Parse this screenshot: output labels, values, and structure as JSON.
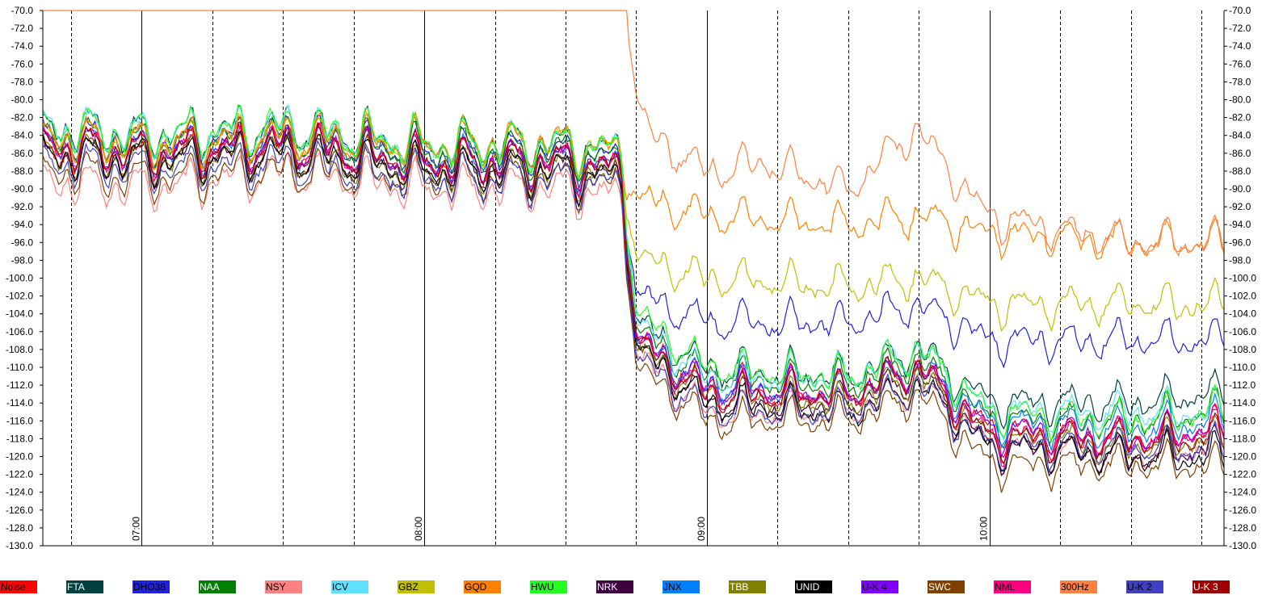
{
  "chart_data": {
    "type": "line",
    "title": "",
    "xlabel": "",
    "ylabel": "",
    "ylim": [
      -130,
      -70
    ],
    "y_ticks": [
      "-70.0",
      "-72.0",
      "-74.0",
      "-76.0",
      "-78.0",
      "-80.0",
      "-82.0",
      "-84.0",
      "-86.0",
      "-88.0",
      "-90.0",
      "-92.0",
      "-94.0",
      "-96.0",
      "-98.0",
      "-100.0",
      "-102.0",
      "-104.0",
      "-106.0",
      "-108.0",
      "-110.0",
      "-112.0",
      "-114.0",
      "-116.0",
      "-118.0",
      "-120.0",
      "-122.0",
      "-124.0",
      "-126.0",
      "-128.0",
      "-130.0"
    ],
    "time_labels": [
      "07:00",
      "08:00",
      "09:00",
      "10:00"
    ],
    "x_range_hours": [
      6.65,
      10.83
    ],
    "grid": "vertical lines every 15 min (dashed) and every hour (solid)",
    "legend_position": "bottom",
    "series": [
      {
        "name": "Noise",
        "color": "#ff0000",
        "text_color": "#000000",
        "x": [
          6.65,
          7.0,
          7.5,
          8.0,
          8.5,
          8.7,
          8.75,
          9.0,
          9.5,
          9.75,
          10.0,
          10.5,
          10.78
        ],
        "values": [
          -86,
          -87,
          -85,
          -87,
          -87,
          -88,
          -107,
          -112,
          -113,
          -110,
          -117,
          -118,
          -117
        ]
      },
      {
        "name": "FTA",
        "color": "#004040",
        "text_color": "#ffffff",
        "x": [
          6.65,
          7.0,
          7.5,
          8.0,
          8.5,
          8.7,
          8.75,
          9.0,
          9.5,
          9.75,
          10.0,
          10.5,
          10.78
        ],
        "values": [
          -83,
          -84,
          -83,
          -85,
          -85,
          -86,
          -105,
          -110,
          -111,
          -108,
          -114,
          -114,
          -113
        ]
      },
      {
        "name": "DHO38",
        "color": "#2020e0",
        "text_color": "#000000",
        "x": [
          6.65,
          7.0,
          7.5,
          8.0,
          8.5,
          8.7,
          8.75,
          9.0,
          9.5,
          9.75,
          10.0,
          10.5,
          10.78
        ],
        "values": [
          -84,
          -85,
          -84,
          -86,
          -86,
          -87,
          -102,
          -105,
          -105,
          -103,
          -107,
          -107,
          -107
        ]
      },
      {
        "name": "NAA",
        "color": "#008000",
        "text_color": "#ffffff",
        "x": [
          6.65,
          7.0,
          7.5,
          8.0,
          8.5,
          8.7,
          8.75,
          9.0,
          9.5,
          9.75,
          10.0,
          10.5,
          10.78
        ],
        "values": [
          -84,
          -85,
          -84,
          -86,
          -86,
          -87,
          -106,
          -111,
          -112,
          -109,
          -116,
          -116,
          -115
        ]
      },
      {
        "name": "NSY",
        "color": "#ff8080",
        "text_color": "#000000",
        "x": [
          6.65,
          7.0,
          7.5,
          8.0,
          8.5,
          8.7,
          8.75,
          9.0,
          9.5,
          9.75,
          10.0,
          10.5,
          10.78
        ],
        "values": [
          -89,
          -90,
          -88,
          -90,
          -90,
          -91,
          -109,
          -115,
          -115,
          -112,
          -119,
          -120,
          -119
        ]
      },
      {
        "name": "ICV",
        "color": "#60e0ff",
        "text_color": "#000000",
        "x": [
          6.65,
          7.0,
          7.5,
          8.0,
          8.5,
          8.7,
          8.75,
          9.0,
          9.5,
          9.75,
          10.0,
          10.5,
          10.78
        ],
        "values": [
          -83,
          -84,
          -83,
          -85,
          -85,
          -86,
          -105,
          -111,
          -111,
          -108,
          -115,
          -115,
          -115
        ]
      },
      {
        "name": "GBZ",
        "color": "#c0c000",
        "text_color": "#000000",
        "x": [
          6.65,
          7.0,
          7.5,
          8.0,
          8.5,
          8.7,
          8.75,
          9.0,
          9.5,
          9.75,
          10.0,
          10.5,
          10.78
        ],
        "values": [
          -84,
          -85,
          -84,
          -85,
          -85,
          -86,
          -98,
          -100,
          -101,
          -100,
          -103,
          -103,
          -103
        ]
      },
      {
        "name": "GQD",
        "color": "#ff8000",
        "text_color": "#000000",
        "x": [
          6.65,
          7.0,
          7.5,
          8.0,
          8.5,
          8.7,
          8.75,
          9.0,
          9.5,
          9.75,
          10.0,
          10.5,
          10.78
        ],
        "values": [
          -84,
          -85,
          -84,
          -85,
          -85,
          -86,
          -91,
          -93,
          -94,
          -93,
          -95,
          -96,
          -96
        ]
      },
      {
        "name": "HWU",
        "color": "#20ff20",
        "text_color": "#000000",
        "x": [
          6.65,
          7.0,
          7.5,
          8.0,
          8.5,
          8.7,
          8.75,
          9.0,
          9.5,
          9.75,
          10.0,
          10.5,
          10.78
        ],
        "values": [
          -83,
          -84,
          -83,
          -85,
          -85,
          -86,
          -104,
          -110,
          -111,
          -108,
          -115,
          -116,
          -115
        ]
      },
      {
        "name": "NRK",
        "color": "#400040",
        "text_color": "#ffffff",
        "x": [
          6.65,
          7.0,
          7.5,
          8.0,
          8.5,
          8.7,
          8.75,
          9.0,
          9.5,
          9.75,
          10.0,
          10.5,
          10.78
        ],
        "values": [
          -86,
          -87,
          -86,
          -88,
          -88,
          -89,
          -108,
          -114,
          -114,
          -111,
          -119,
          -120,
          -119
        ]
      },
      {
        "name": "JNX",
        "color": "#0080ff",
        "text_color": "#000000",
        "x": [
          6.65,
          7.0,
          7.5,
          8.0,
          8.5,
          8.7,
          8.75,
          9.0,
          9.5,
          9.75,
          10.0,
          10.5,
          10.78
        ],
        "values": [
          -85,
          -86,
          -85,
          -87,
          -87,
          -88,
          -107,
          -112,
          -113,
          -110,
          -116,
          -117,
          -116
        ]
      },
      {
        "name": "TBB",
        "color": "#808000",
        "text_color": "#ffffff",
        "x": [
          6.65,
          7.0,
          7.5,
          8.0,
          8.5,
          8.7,
          8.75,
          9.0,
          9.5,
          9.75,
          10.0,
          10.5,
          10.78
        ],
        "values": [
          -86,
          -87,
          -86,
          -88,
          -88,
          -89,
          -108,
          -113,
          -114,
          -111,
          -118,
          -119,
          -118
        ]
      },
      {
        "name": "UNID",
        "color": "#000000",
        "text_color": "#ffffff",
        "x": [
          6.65,
          7.0,
          7.5,
          8.0,
          8.5,
          8.7,
          8.75,
          9.0,
          9.5,
          9.75,
          10.0,
          10.5,
          10.78
        ],
        "values": [
          -86,
          -87,
          -86,
          -88,
          -88,
          -89,
          -108,
          -114,
          -115,
          -112,
          -119,
          -120,
          -120
        ]
      },
      {
        "name": "U-K 4",
        "color": "#8000ff",
        "text_color": "#000000",
        "x": [
          6.65,
          7.0,
          7.5,
          8.0,
          8.5,
          8.7,
          8.75,
          9.0,
          9.5,
          9.75,
          10.0,
          10.5,
          10.78
        ],
        "values": [
          -85,
          -86,
          -85,
          -87,
          -87,
          -88,
          -107,
          -112,
          -113,
          -110,
          -117,
          -118,
          -117
        ]
      },
      {
        "name": "SWC",
        "color": "#804000",
        "text_color": "#ffffff",
        "x": [
          6.65,
          7.0,
          7.5,
          8.0,
          8.5,
          8.7,
          8.75,
          9.0,
          9.5,
          9.75,
          10.0,
          10.5,
          10.78
        ],
        "values": [
          -88,
          -89,
          -88,
          -89,
          -89,
          -90,
          -110,
          -116,
          -116,
          -113,
          -121,
          -121,
          -121
        ]
      },
      {
        "name": "NML",
        "color": "#ff0080",
        "text_color": "#000000",
        "x": [
          6.65,
          7.0,
          7.5,
          8.0,
          8.5,
          8.7,
          8.75,
          9.0,
          9.5,
          9.75,
          10.0,
          10.5,
          10.78
        ],
        "values": [
          -85,
          -86,
          -85,
          -87,
          -87,
          -88,
          -107,
          -113,
          -113,
          -110,
          -118,
          -118,
          -117
        ]
      },
      {
        "name": "300Hz",
        "color": "#ff8040",
        "text_color": "#000000",
        "x": [
          6.65,
          7.0,
          7.5,
          8.0,
          8.5,
          8.72,
          8.75,
          8.8,
          9.0,
          9.2,
          9.5,
          9.75,
          9.8,
          10.0,
          10.5,
          10.78
        ],
        "values": [
          -70,
          -70,
          -70,
          -70,
          -70,
          -70,
          -80,
          -84,
          -88,
          -87,
          -90,
          -83,
          -86,
          -93,
          -96,
          -96
        ]
      },
      {
        "name": "U-K 2",
        "color": "#4040c0",
        "text_color": "#000000",
        "x": [
          6.65,
          7.0,
          7.5,
          8.0,
          8.5,
          8.7,
          8.75,
          9.0,
          9.5,
          9.75,
          10.0,
          10.5,
          10.78
        ],
        "values": [
          -87,
          -88,
          -87,
          -89,
          -89,
          -90,
          -109,
          -115,
          -115,
          -112,
          -119,
          -119,
          -119
        ]
      },
      {
        "name": "U-K 3",
        "color": "#a00000",
        "text_color": "#ffffff",
        "x": [
          6.65,
          7.0,
          7.5,
          8.0,
          8.5,
          8.7,
          8.75,
          9.0,
          9.5,
          9.75,
          10.0,
          10.5,
          10.78
        ],
        "values": [
          -85,
          -86,
          -85,
          -87,
          -87,
          -88,
          -107,
          -113,
          -113,
          -110,
          -118,
          -118,
          -118
        ]
      }
    ]
  }
}
